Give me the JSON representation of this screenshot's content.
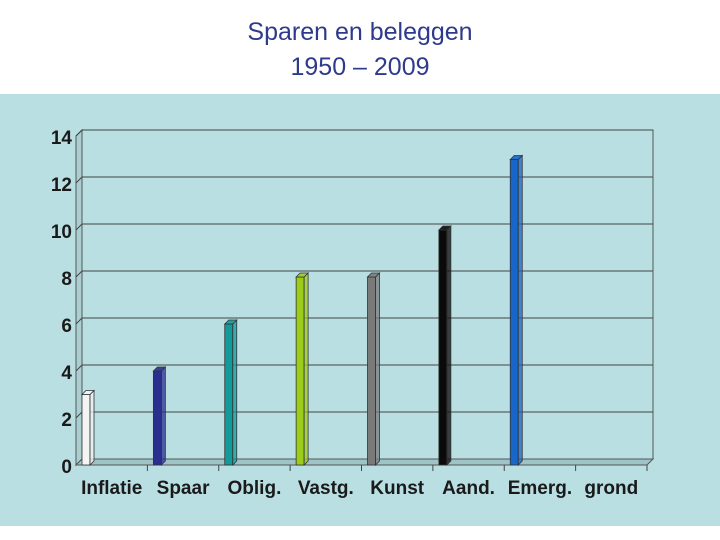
{
  "slide": {
    "title_line1": "Sparen en beleggen",
    "title_line2": "1950 – 2009"
  },
  "chart_data": {
    "type": "bar",
    "title": "",
    "xlabel": "",
    "ylabel": "",
    "ylim": [
      0,
      14
    ],
    "yticks": [
      0,
      2,
      4,
      6,
      8,
      10,
      12,
      14
    ],
    "grid": true,
    "legend": "none",
    "categories": [
      "Inflatie",
      "Spaar",
      "Oblig.",
      "Vastg.",
      "Kunst",
      "Aand.",
      "Emerg.",
      "grond"
    ],
    "values": [
      3,
      4,
      6,
      8,
      8,
      10,
      13,
      null
    ],
    "colors": [
      "#f4f4f4",
      "#2a2f8f",
      "#139a9a",
      "#9ccc1a",
      "#7a7a7a",
      "#0a0a0a",
      "#1766c9",
      "#888888"
    ]
  }
}
